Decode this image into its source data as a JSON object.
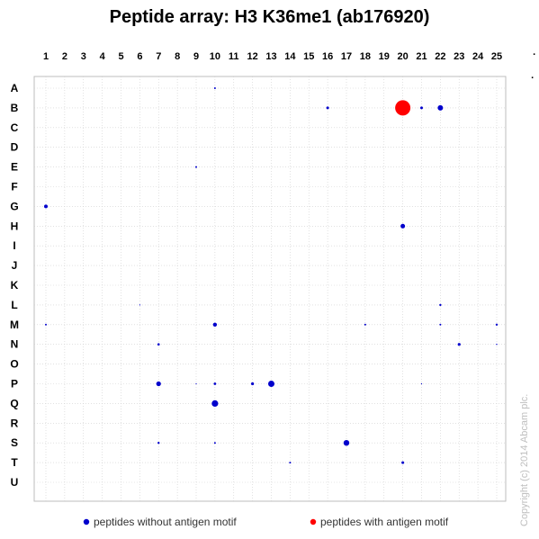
{
  "chart_data": {
    "type": "scatter",
    "title": "Peptide array: H3 K36me1 (ab176920)",
    "columns": [
      "1",
      "2",
      "3",
      "4",
      "5",
      "6",
      "7",
      "8",
      "9",
      "10",
      "11",
      "12",
      "13",
      "14",
      "15",
      "16",
      "17",
      "18",
      "19",
      "20",
      "21",
      "22",
      "23",
      "24",
      "25"
    ],
    "rows": [
      "A",
      "B",
      "C",
      "D",
      "E",
      "F",
      "G",
      "H",
      "I",
      "J",
      "K",
      "L",
      "M",
      "N",
      "O",
      "P",
      "Q",
      "R",
      "S",
      "T",
      "U"
    ],
    "grid": true,
    "legend_position": "bottom",
    "series": [
      {
        "name": "peptides without antigen motif",
        "color": "#0000cc",
        "points": [
          {
            "col": 10,
            "row": "A",
            "size": 1
          },
          {
            "col": 16,
            "row": "B",
            "size": 1.5
          },
          {
            "col": 21,
            "row": "B",
            "size": 1.5
          },
          {
            "col": 22,
            "row": "B",
            "size": 3
          },
          {
            "col": 9,
            "row": "E",
            "size": 1
          },
          {
            "col": 1,
            "row": "G",
            "size": 2
          },
          {
            "col": 20,
            "row": "H",
            "size": 2.5
          },
          {
            "col": 6,
            "row": "L",
            "size": 0.6
          },
          {
            "col": 22,
            "row": "L",
            "size": 1.2
          },
          {
            "col": 1,
            "row": "M",
            "size": 1
          },
          {
            "col": 10,
            "row": "M",
            "size": 2.2
          },
          {
            "col": 18,
            "row": "M",
            "size": 1
          },
          {
            "col": 22,
            "row": "M",
            "size": 1
          },
          {
            "col": 25,
            "row": "M",
            "size": 1.2
          },
          {
            "col": 7,
            "row": "N",
            "size": 1.3
          },
          {
            "col": 23,
            "row": "N",
            "size": 1.6
          },
          {
            "col": 25,
            "row": "N",
            "size": 0.7
          },
          {
            "col": 7,
            "row": "P",
            "size": 2.6
          },
          {
            "col": 9,
            "row": "P",
            "size": 0.6
          },
          {
            "col": 10,
            "row": "P",
            "size": 1.4
          },
          {
            "col": 12,
            "row": "P",
            "size": 1.6
          },
          {
            "col": 13,
            "row": "P",
            "size": 3.5
          },
          {
            "col": 21,
            "row": "P",
            "size": 0.6
          },
          {
            "col": 10,
            "row": "Q",
            "size": 3.6
          },
          {
            "col": 7,
            "row": "S",
            "size": 1.2
          },
          {
            "col": 10,
            "row": "S",
            "size": 1
          },
          {
            "col": 17,
            "row": "S",
            "size": 3.2
          },
          {
            "col": 14,
            "row": "T",
            "size": 1
          },
          {
            "col": 20,
            "row": "T",
            "size": 1.5
          }
        ]
      },
      {
        "name": "peptides with antigen motif",
        "color": "#ff0000",
        "points": [
          {
            "col": 20,
            "row": "B",
            "size": 8.5
          }
        ]
      }
    ],
    "copyright": "Copyright (c) 2014 Abcam plc."
  }
}
